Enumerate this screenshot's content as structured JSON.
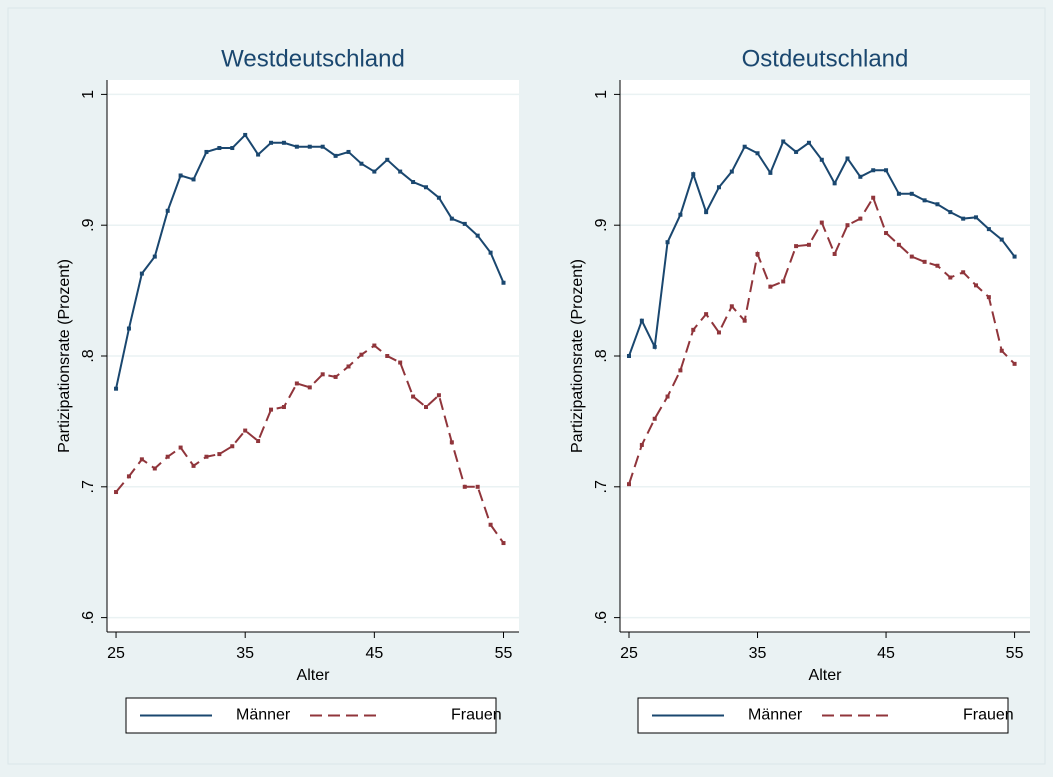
{
  "chart_data": [
    {
      "type": "line",
      "title": "Westdeutschland",
      "x_label": "Alter",
      "y_label": "Partizipationsrate (Prozent)",
      "x": [
        25,
        26,
        27,
        28,
        29,
        30,
        31,
        32,
        33,
        34,
        35,
        36,
        37,
        38,
        39,
        40,
        41,
        42,
        43,
        44,
        45,
        46,
        47,
        48,
        49,
        50,
        51,
        52,
        53,
        54,
        55
      ],
      "series": [
        {
          "name": "Männer",
          "color": "#1a476f",
          "style": "solid",
          "values": [
            0.775,
            0.821,
            0.863,
            0.876,
            0.911,
            0.938,
            0.935,
            0.956,
            0.959,
            0.959,
            0.969,
            0.954,
            0.963,
            0.963,
            0.96,
            0.96,
            0.96,
            0.953,
            0.956,
            0.947,
            0.941,
            0.95,
            0.941,
            0.933,
            0.929,
            0.921,
            0.905,
            0.901,
            0.892,
            0.879,
            0.856
          ]
        },
        {
          "name": "Frauen",
          "color": "#90353b",
          "style": "dashed",
          "values": [
            0.696,
            0.708,
            0.721,
            0.714,
            0.723,
            0.73,
            0.716,
            0.723,
            0.725,
            0.731,
            0.743,
            0.735,
            0.759,
            0.761,
            0.779,
            0.776,
            0.786,
            0.784,
            0.792,
            0.801,
            0.808,
            0.8,
            0.795,
            0.769,
            0.761,
            0.77,
            0.734,
            0.7,
            0.7,
            0.671,
            0.657
          ]
        }
      ],
      "xlim": [
        24.3,
        56.2
      ],
      "ylim": [
        0.589,
        1.011
      ],
      "xticks": [
        25,
        35,
        45,
        55
      ],
      "yticks": [
        {
          "value": 0.6,
          "label": ".6"
        },
        {
          "value": 0.7,
          "label": ".7"
        },
        {
          "value": 0.8,
          "label": ".8"
        },
        {
          "value": 0.9,
          "label": ".9"
        },
        1
      ],
      "grid": true,
      "legend": "bottom"
    },
    {
      "type": "line",
      "title": "Ostdeutschland",
      "x_label": "Alter",
      "y_label": "Partizipationsrate (Prozent)",
      "x": [
        25,
        26,
        27,
        28,
        29,
        30,
        31,
        32,
        33,
        34,
        35,
        36,
        37,
        38,
        39,
        40,
        41,
        42,
        43,
        44,
        45,
        46,
        47,
        48,
        49,
        50,
        51,
        52,
        53,
        54,
        55
      ],
      "series": [
        {
          "name": "Männer",
          "color": "#1a476f",
          "style": "solid",
          "values": [
            0.8,
            0.827,
            0.807,
            0.887,
            0.908,
            0.939,
            0.91,
            0.929,
            0.941,
            0.96,
            0.955,
            0.94,
            0.964,
            0.956,
            0.963,
            0.95,
            0.932,
            0.951,
            0.937,
            0.942,
            0.942,
            0.924,
            0.924,
            0.919,
            0.916,
            0.91,
            0.905,
            0.906,
            0.897,
            0.889,
            0.876
          ]
        },
        {
          "name": "Frauen",
          "color": "#90353b",
          "style": "dashed",
          "values": [
            0.702,
            0.732,
            0.752,
            0.769,
            0.789,
            0.82,
            0.832,
            0.818,
            0.838,
            0.827,
            0.878,
            0.853,
            0.857,
            0.884,
            0.885,
            0.902,
            0.878,
            0.9,
            0.905,
            0.921,
            0.894,
            0.885,
            0.876,
            0.872,
            0.869,
            0.86,
            0.864,
            0.854,
            0.845,
            0.804,
            0.794
          ]
        }
      ],
      "xlim": [
        24.3,
        56.2
      ],
      "ylim": [
        0.589,
        1.011
      ],
      "xticks": [
        25,
        35,
        45,
        55
      ],
      "yticks": [
        {
          "value": 0.6,
          "label": ".6"
        },
        {
          "value": 0.7,
          "label": ".7"
        },
        {
          "value": 0.8,
          "label": ".8"
        },
        {
          "value": 0.9,
          "label": ".9"
        },
        1
      ],
      "grid": true,
      "legend": "bottom"
    }
  ]
}
